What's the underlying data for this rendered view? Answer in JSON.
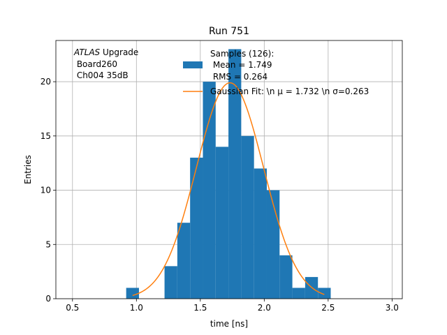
{
  "chart_data": {
    "type": "bar",
    "title": "Run 751",
    "xlabel": "time [ns]",
    "ylabel": "Entries",
    "xlim": [
      0.37,
      3.08
    ],
    "ylim": [
      0,
      23.8
    ],
    "grid": true,
    "xticks": [
      0.5,
      1.0,
      1.5,
      2.0,
      2.5,
      3.0
    ],
    "xtick_labels": [
      "0.5",
      "1.0",
      "1.5",
      "2.0",
      "2.5",
      "3.0"
    ],
    "yticks": [
      0,
      5,
      10,
      15,
      20
    ],
    "ytick_labels": [
      "0",
      "5",
      "10",
      "15",
      "20"
    ],
    "annotation": {
      "italic_part": "ATLAS",
      "rest_line1": " Upgrade",
      "line2": " Board260",
      "line3": " Ch004 35dB"
    },
    "legend": {
      "placement": "top-center",
      "histogram_label_lines": [
        "Samples (126):",
        " Mean = 1.749",
        " RMS = 0.264"
      ],
      "fit_label": "Gaussian Fit: \\n μ = 1.732 \\n σ=0.263"
    },
    "histogram": {
      "name": "Samples (126)",
      "color": "#1f77b4",
      "bins": [
        {
          "x0": 0.92,
          "x1": 1.02,
          "count": 1
        },
        {
          "x0": 1.22,
          "x1": 1.32,
          "count": 3
        },
        {
          "x0": 1.32,
          "x1": 1.42,
          "count": 7
        },
        {
          "x0": 1.42,
          "x1": 1.52,
          "count": 13
        },
        {
          "x0": 1.52,
          "x1": 1.62,
          "count": 20
        },
        {
          "x0": 1.62,
          "x1": 1.72,
          "count": 14
        },
        {
          "x0": 1.72,
          "x1": 1.82,
          "count": 23
        },
        {
          "x0": 1.82,
          "x1": 1.92,
          "count": 15
        },
        {
          "x0": 1.92,
          "x1": 2.02,
          "count": 12
        },
        {
          "x0": 2.02,
          "x1": 2.12,
          "count": 10
        },
        {
          "x0": 2.12,
          "x1": 2.22,
          "count": 4
        },
        {
          "x0": 2.22,
          "x1": 2.32,
          "count": 1
        },
        {
          "x0": 2.32,
          "x1": 2.42,
          "count": 2
        },
        {
          "x0": 2.42,
          "x1": 2.52,
          "count": 1
        }
      ]
    },
    "fit": {
      "name": "Gaussian Fit",
      "color": "#ff7f0e",
      "mu": 1.732,
      "sigma": 0.263,
      "amplitude": 19.9,
      "x_range": [
        0.97,
        2.47
      ]
    }
  }
}
